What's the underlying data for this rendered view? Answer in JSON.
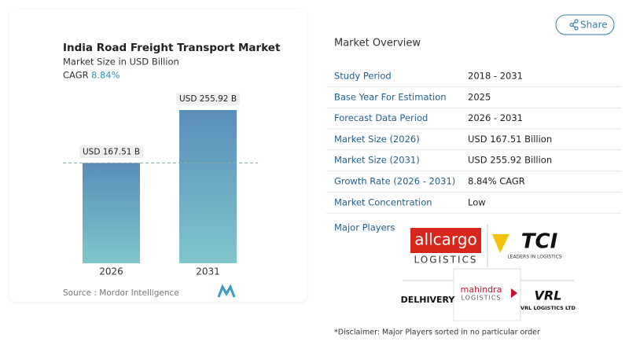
{
  "share": "Share",
  "chart_data": {
    "type": "bar",
    "title": "India Road Freight Transport Market",
    "subtitle": "Market Size in USD Billion",
    "cagr_label": "CAGR",
    "cagr_value": "8.84%",
    "categories": [
      "2026",
      "2031"
    ],
    "values": [
      167.51,
      255.92
    ],
    "value_labels": [
      "USD 167.51 B",
      "USD 255.92 B"
    ],
    "source": "Source :  Mordor Intelligence"
  },
  "overview": {
    "title": "Market Overview",
    "rows": [
      [
        "Study Period",
        "2018 - 2031"
      ],
      [
        "Base Year For Estimation",
        "2025"
      ],
      [
        "Forecast Data Period",
        "2026 - 2031"
      ],
      [
        "Market Size (2026)",
        "USD 167.51 Billion"
      ],
      [
        "Market Size (2031)",
        "USD 255.92 Billion"
      ],
      [
        "Growth Rate (2026 - 2031)",
        "8.84% CAGR"
      ],
      [
        "Market Concentration",
        "Low"
      ]
    ]
  },
  "players": {
    "title": "Major Players",
    "logos": [
      [
        "allcargo",
        "LOGISTICS"
      ],
      [
        "TCI",
        "LEADERS IN LOGISTICS"
      ],
      [
        "DELHIVERY"
      ],
      [
        "mahindra",
        "LOGISTICS"
      ],
      [
        "VRL",
        "VRL LOGISTICS LTD"
      ]
    ],
    "disclaimer": "*Disclaimer: Major Players sorted in no particular order"
  }
}
